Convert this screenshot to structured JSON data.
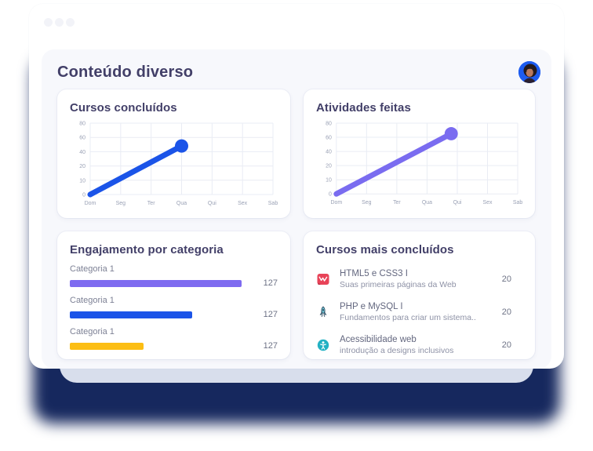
{
  "header": {
    "title": "Conteúdo diverso"
  },
  "chart_data": [
    {
      "id": "cursos-concluidos",
      "type": "line",
      "title": "Cursos concluídos",
      "x_labels": [
        "Dom",
        "Seg",
        "Ter",
        "Qua",
        "Qui",
        "Sex",
        "Sab"
      ],
      "y_ticks": [
        80,
        60,
        40,
        20,
        10,
        0
      ],
      "grid": true,
      "legend": false,
      "series": [
        {
          "name": "Cursos concluídos",
          "color": "#1b54e8",
          "points": [
            {
              "x": 0,
              "y": 0
            },
            {
              "x": 3,
              "y": 48
            }
          ],
          "end_dot": true
        }
      ]
    },
    {
      "id": "atividades-feitas",
      "type": "line",
      "title": "Atividades feitas",
      "x_labels": [
        "Dom",
        "Seg",
        "Ter",
        "Qua",
        "Qui",
        "Sex",
        "Sab"
      ],
      "y_ticks": [
        80,
        60,
        40,
        20,
        10,
        0
      ],
      "grid": true,
      "legend": false,
      "series": [
        {
          "name": "Atividades feitas",
          "color": "#7a6cf0",
          "points": [
            {
              "x": 0,
              "y": 0
            },
            {
              "x": 3.8,
              "y": 65
            }
          ],
          "end_dot": true
        }
      ]
    },
    {
      "id": "engajamento-por-categoria",
      "type": "bar",
      "title": "Engajamento por categoria",
      "orientation": "horizontal",
      "bars": [
        {
          "label": "Categoria 1",
          "value": 127,
          "color": "#7e6bf0",
          "width_pct": 98
        },
        {
          "label": "Categoria 1",
          "value": 127,
          "color": "#1b54e8",
          "width_pct": 70
        },
        {
          "label": "Categoria 1",
          "value": 127,
          "color": "#fcbe14",
          "width_pct": 42
        }
      ]
    }
  ],
  "courses": {
    "title": "Cursos mais concluídos",
    "items": [
      {
        "icon": "html5-icon",
        "title": "HTML5 e CSS3 I",
        "subtitle": "Suas primeiras páginas da Web",
        "count": "20"
      },
      {
        "icon": "php-rocket-icon",
        "title": "PHP e MySQL I",
        "subtitle": "Fundamentos para criar um sistema..",
        "count": "20"
      },
      {
        "icon": "accessibility-icon",
        "title": "Acessibilidade web",
        "subtitle": "introdução a designs inclusivos",
        "count": "20"
      }
    ]
  },
  "colors": {
    "line_blue": "#1b54e8",
    "line_violet": "#7a6cf0",
    "bar_yellow": "#fcbe14",
    "title_text": "#423f68",
    "axis_text": "#9aa1b5",
    "glow_navy": "#16285e",
    "panel_bg": "#f7f8fc"
  }
}
